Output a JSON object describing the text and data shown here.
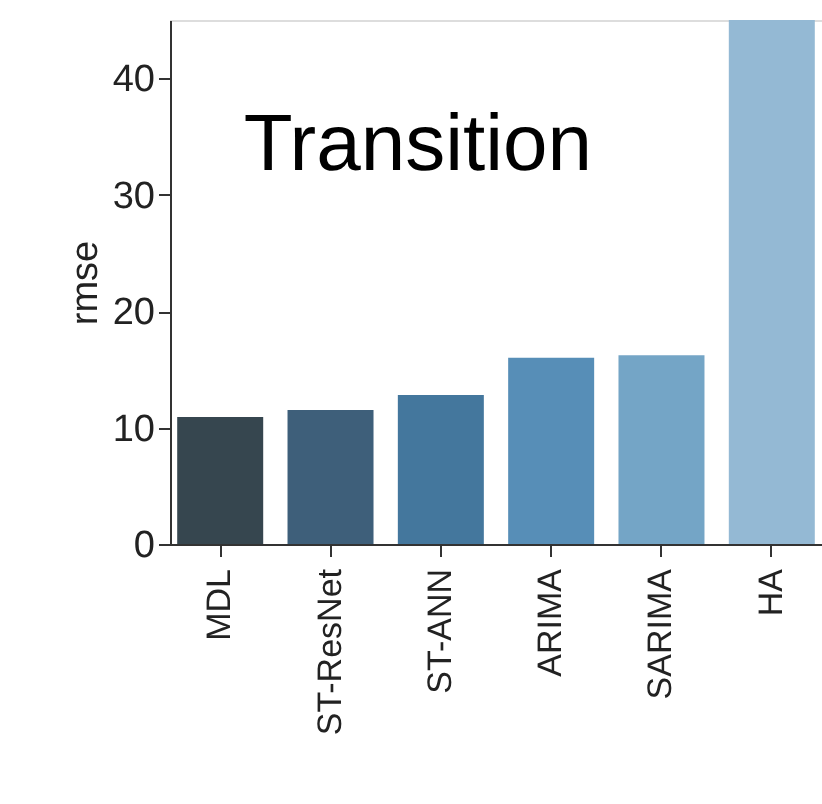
{
  "chart_data": {
    "type": "bar",
    "ylabel": "rmse",
    "categories": [
      "MDL",
      "ST-ResNet",
      "ST-ANN",
      "ARIMA",
      "SARIMA",
      "HA"
    ],
    "values": [
      10.9,
      11.5,
      12.8,
      16.0,
      16.2,
      45
    ],
    "colors": [
      "#36464f",
      "#3e5f7a",
      "#44779d",
      "#578eb7",
      "#74a5c6",
      "#94b9d4"
    ],
    "annotations": [
      "Transition"
    ],
    "ylim": [
      0,
      45
    ],
    "yticks": [
      0,
      10,
      20,
      30,
      40
    ],
    "grid": false
  }
}
